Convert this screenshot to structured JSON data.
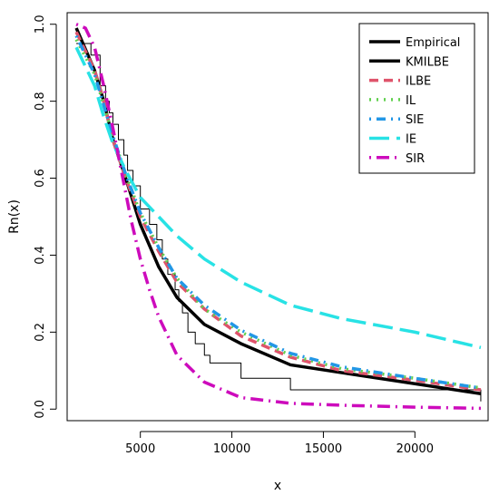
{
  "chart_data": {
    "type": "line",
    "xlabel": "x",
    "ylabel": "Rn(x)",
    "xlim": [
      1000,
      24000
    ],
    "ylim": [
      -0.03,
      1.03
    ],
    "x_ticks": [
      {
        "value": 5000,
        "label": "5000"
      },
      {
        "value": 10000,
        "label": "10000"
      },
      {
        "value": 15000,
        "label": "15000"
      },
      {
        "value": 20000,
        "label": "20000"
      }
    ],
    "y_ticks": [
      {
        "value": 0.0,
        "label": "0.0"
      },
      {
        "value": 0.2,
        "label": "0.2"
      },
      {
        "value": 0.4,
        "label": "0.4"
      },
      {
        "value": 0.6,
        "label": "0.6"
      },
      {
        "value": 0.8,
        "label": "0.8"
      },
      {
        "value": 1.0,
        "label": "1.0"
      }
    ],
    "legend_position": "top-right",
    "series": [
      {
        "name": "Empirical",
        "kind": "step",
        "color": "#000000",
        "style": "solid-thin",
        "x": [
          1500,
          2300,
          2800,
          3100,
          3300,
          3500,
          3800,
          4100,
          4300,
          4600,
          5000,
          5500,
          5900,
          6200,
          6500,
          6900,
          7100,
          7300,
          7600,
          8000,
          8500,
          8800,
          10500,
          13200,
          23600
        ],
        "y": [
          0.95,
          0.92,
          0.84,
          0.8,
          0.77,
          0.74,
          0.7,
          0.66,
          0.62,
          0.58,
          0.52,
          0.48,
          0.44,
          0.39,
          0.35,
          0.31,
          0.28,
          0.25,
          0.2,
          0.17,
          0.14,
          0.12,
          0.08,
          0.05,
          0.02
        ]
      },
      {
        "name": "KMILBE",
        "color": "#000000",
        "style": "solid-thick",
        "x": [
          1500,
          2500,
          3000,
          3500,
          4200,
          5000,
          6000,
          7000,
          8500,
          10500,
          13200,
          23600
        ],
        "y": [
          0.99,
          0.88,
          0.8,
          0.7,
          0.6,
          0.48,
          0.37,
          0.29,
          0.22,
          0.17,
          0.115,
          0.04
        ]
      },
      {
        "name": "ILBE",
        "color": "#df536b",
        "style": "dashed",
        "x": [
          1500,
          2500,
          3000,
          3500,
          4200,
          5000,
          6000,
          7000,
          8500,
          10500,
          13200,
          16000,
          20000,
          23600
        ],
        "y": [
          0.98,
          0.88,
          0.8,
          0.7,
          0.6,
          0.5,
          0.41,
          0.33,
          0.26,
          0.19,
          0.135,
          0.1,
          0.075,
          0.05
        ]
      },
      {
        "name": "IL",
        "color": "#61d04f",
        "style": "dotted",
        "x": [
          1500,
          2500,
          3000,
          3500,
          4200,
          5000,
          6000,
          7000,
          8500,
          10500,
          13200,
          16000,
          20000,
          23600
        ],
        "y": [
          0.96,
          0.87,
          0.79,
          0.71,
          0.61,
          0.51,
          0.42,
          0.34,
          0.26,
          0.2,
          0.14,
          0.105,
          0.08,
          0.055
        ]
      },
      {
        "name": "SIE",
        "color": "#2297e6",
        "style": "dot-dash",
        "x": [
          1500,
          2500,
          3000,
          3500,
          4200,
          5000,
          6000,
          7000,
          8500,
          10500,
          13200,
          16000,
          20000,
          23600
        ],
        "y": [
          0.97,
          0.87,
          0.79,
          0.71,
          0.61,
          0.51,
          0.42,
          0.34,
          0.27,
          0.205,
          0.145,
          0.11,
          0.08,
          0.055
        ]
      },
      {
        "name": "IE",
        "color": "#28e2e5",
        "style": "long-dash",
        "x": [
          1500,
          2500,
          3000,
          3500,
          4200,
          5000,
          6000,
          7000,
          8500,
          10500,
          13200,
          16000,
          20000,
          23600
        ],
        "y": [
          0.94,
          0.84,
          0.76,
          0.69,
          0.62,
          0.55,
          0.5,
          0.45,
          0.39,
          0.33,
          0.27,
          0.235,
          0.2,
          0.16
        ]
      },
      {
        "name": "SIR",
        "color": "#cd0bbc",
        "style": "thick-dot-dash",
        "x": [
          1500,
          2000,
          2500,
          3000,
          3500,
          4000,
          4500,
          5000,
          5500,
          6000,
          7000,
          8500,
          10500,
          13200,
          16000,
          20000,
          23600
        ],
        "y": [
          1.0,
          0.99,
          0.94,
          0.84,
          0.73,
          0.61,
          0.49,
          0.39,
          0.31,
          0.24,
          0.14,
          0.07,
          0.03,
          0.015,
          0.01,
          0.005,
          0.002
        ]
      }
    ]
  }
}
